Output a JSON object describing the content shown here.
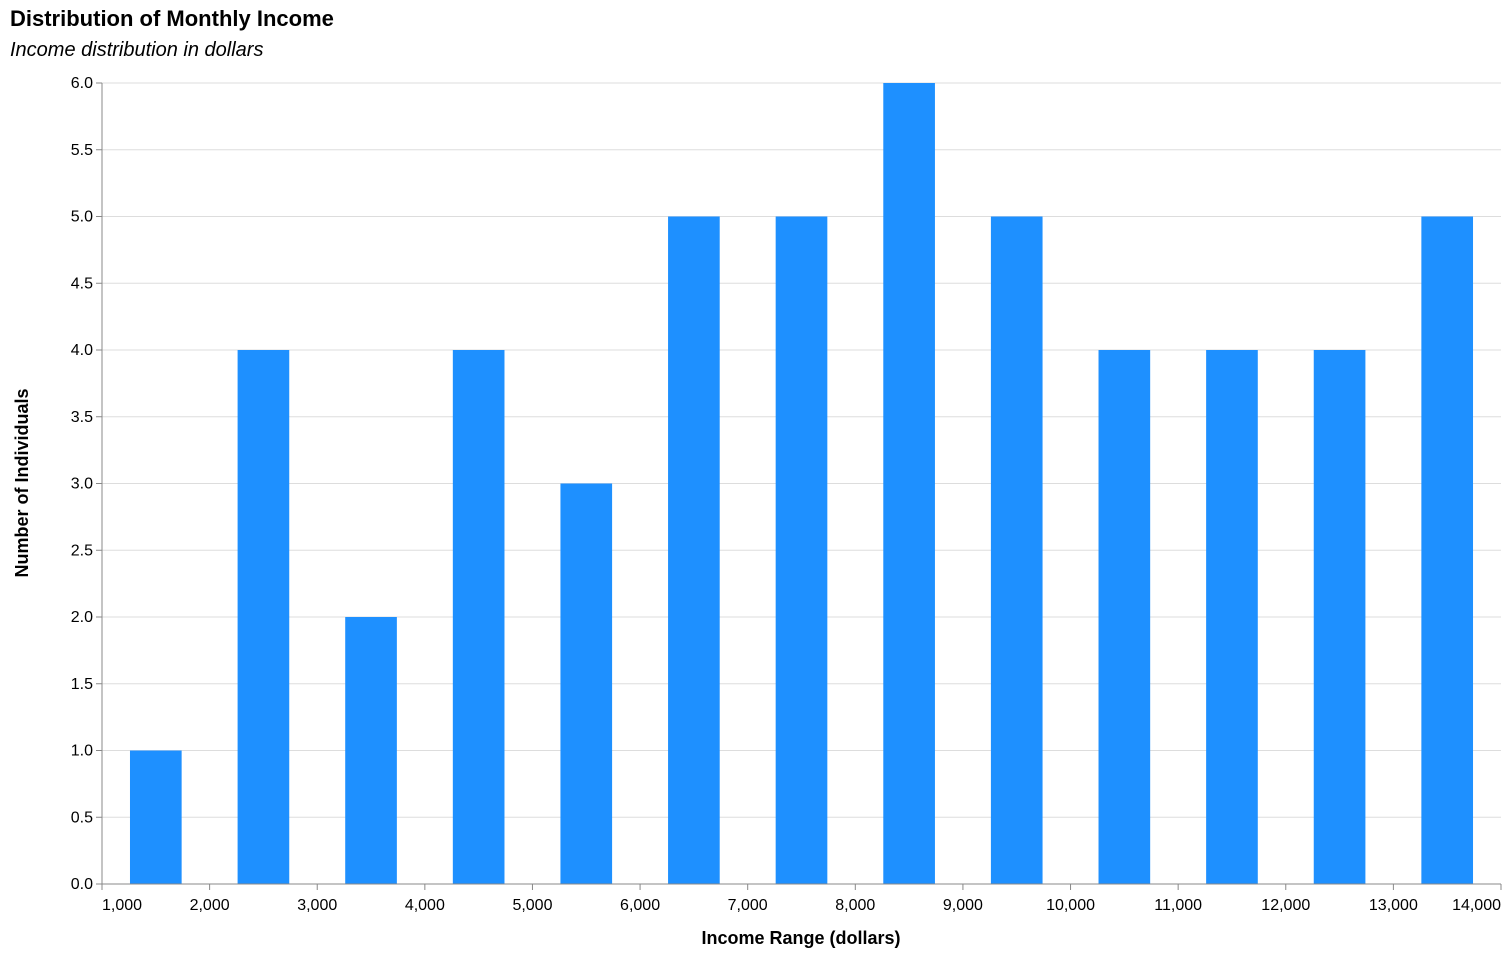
{
  "chart_data": {
    "type": "bar",
    "title": "Distribution of Monthly Income",
    "subtitle": "Income distribution in dollars",
    "xlabel": "Income Range (dollars)",
    "ylabel": "Number of Individuals",
    "bins": [
      {
        "start": 1000,
        "end": 2000,
        "count": 1
      },
      {
        "start": 2000,
        "end": 3000,
        "count": 4
      },
      {
        "start": 3000,
        "end": 4000,
        "count": 2
      },
      {
        "start": 4000,
        "end": 5000,
        "count": 4
      },
      {
        "start": 5000,
        "end": 6000,
        "count": 3
      },
      {
        "start": 6000,
        "end": 7000,
        "count": 5
      },
      {
        "start": 7000,
        "end": 8000,
        "count": 5
      },
      {
        "start": 8000,
        "end": 9000,
        "count": 6
      },
      {
        "start": 9000,
        "end": 10000,
        "count": 5
      },
      {
        "start": 10000,
        "end": 11000,
        "count": 4
      },
      {
        "start": 11000,
        "end": 12000,
        "count": 4
      },
      {
        "start": 12000,
        "end": 13000,
        "count": 4
      },
      {
        "start": 13000,
        "end": 14000,
        "count": 5
      }
    ],
    "xlim": [
      1000,
      14000
    ],
    "ylim": [
      0,
      6
    ],
    "x_ticks": [
      "1,000",
      "2,000",
      "3,000",
      "4,000",
      "5,000",
      "6,000",
      "7,000",
      "8,000",
      "9,000",
      "10,000",
      "11,000",
      "12,000",
      "13,000",
      "14,000"
    ],
    "y_ticks": [
      "0.0",
      "0.5",
      "1.0",
      "1.5",
      "2.0",
      "2.5",
      "3.0",
      "3.5",
      "4.0",
      "4.5",
      "5.0",
      "5.5",
      "6.0"
    ],
    "bar_color": "#1e90ff",
    "grid": true,
    "legend": "none"
  }
}
